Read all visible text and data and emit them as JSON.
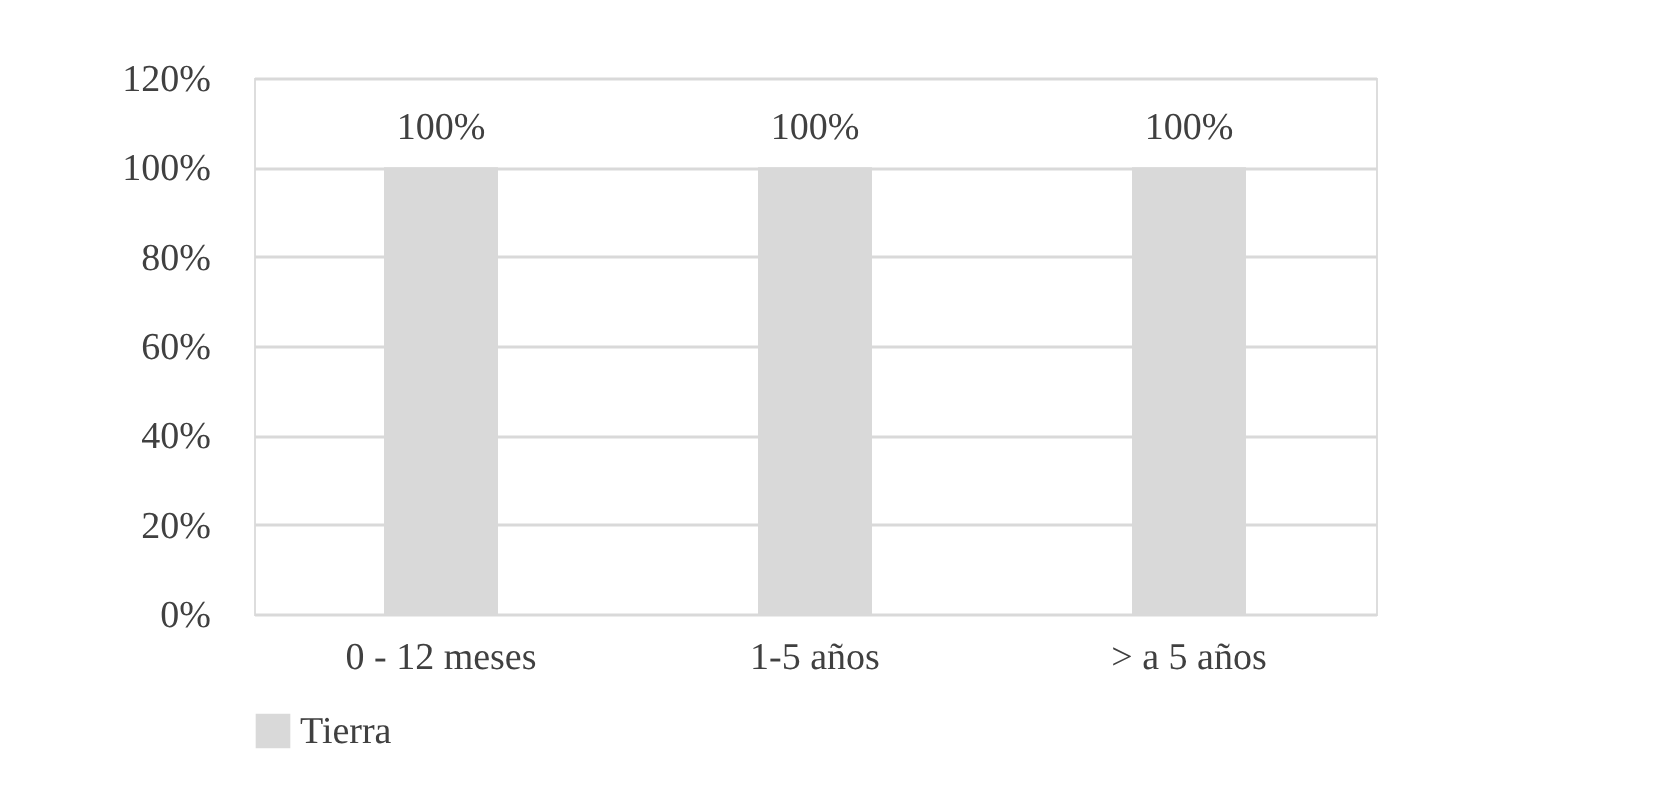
{
  "chart_data": {
    "type": "bar",
    "categories": [
      "0 - 12 meses",
      "1-5 años",
      "> a 5 años"
    ],
    "series": [
      {
        "name": "Tierra",
        "color": "#d9d9d9",
        "values": [
          100,
          100,
          100
        ],
        "value_labels": [
          "100%",
          "100%",
          "100%"
        ]
      }
    ],
    "ylim": [
      0,
      120
    ],
    "yticks": [
      {
        "value": 0,
        "label": "0%"
      },
      {
        "value": 20,
        "label": "20%"
      },
      {
        "value": 40,
        "label": "40%"
      },
      {
        "value": 60,
        "label": "60%"
      },
      {
        "value": 80,
        "label": "80%"
      },
      {
        "value": 100,
        "label": "100%"
      },
      {
        "value": 120,
        "label": "120%"
      }
    ],
    "grid": "y",
    "legend": "bottom"
  }
}
